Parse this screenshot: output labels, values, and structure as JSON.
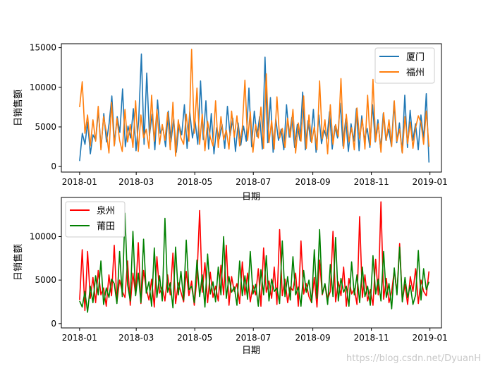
{
  "watermark": "https://blog.csdn.net/DyuanH",
  "chart_data": [
    {
      "type": "line",
      "xlabel": "日期",
      "ylabel": "日销售额",
      "x_start": "2018-01-01",
      "x_end": "2018-12-31",
      "xlim": [
        "2017-12-13",
        "2019-01-13"
      ],
      "ylim": [
        -700,
        15500
      ],
      "yticks": [
        0,
        5000,
        10000,
        15000
      ],
      "ytick_labels": [
        "0",
        "5000",
        "10000",
        "15000"
      ],
      "xtick_dates": [
        "2018-01-01",
        "2018-03-01",
        "2018-05-01",
        "2018-07-01",
        "2018-09-01",
        "2018-11-01",
        "2019-01-01"
      ],
      "xtick_labels": [
        "2018-01",
        "2018-03",
        "2018-05",
        "2018-07",
        "2018-09",
        "2018-11",
        "2019-01"
      ],
      "legend_position": "top-right",
      "series": [
        {
          "name": "厦门",
          "color": "#1f77b4",
          "values": [
            700,
            4200,
            2800,
            5600,
            1600,
            4000,
            3300,
            7100,
            2300,
            6700,
            3100,
            5500,
            8900,
            2800,
            6300,
            4300,
            9800,
            2500,
            5100,
            3600,
            7300,
            2000,
            5900,
            14200,
            2800,
            11800,
            3900,
            6600,
            2100,
            8400,
            4200,
            4900,
            2500,
            7000,
            3100,
            6000,
            1800,
            5300,
            4000,
            7800,
            2300,
            6900,
            3600,
            5700,
            2800,
            10800,
            3400,
            8300,
            2200,
            6700,
            1600,
            4900,
            3500,
            5300,
            2300,
            7600,
            3900,
            6100,
            1900,
            5500,
            2700,
            5100,
            3200,
            9900,
            2500,
            7000,
            3800,
            6300,
            2200,
            13800,
            3000,
            8700,
            1800,
            6000,
            3300,
            4700,
            2100,
            7800,
            3700,
            6200,
            2400,
            5300,
            3300,
            9400,
            2100,
            5800,
            3200,
            7200,
            1800,
            6500,
            2900,
            4600,
            3500,
            6900,
            2200,
            5100,
            3600,
            8000,
            2600,
            6000,
            1900,
            5400,
            3200,
            7300,
            2000,
            6400,
            3400,
            4800,
            2400,
            7800,
            3100,
            5900,
            2300,
            6700,
            3300,
            4700,
            2600,
            8200,
            3000,
            5500,
            1800,
            9000,
            2400,
            7100,
            3300,
            5400,
            2100,
            6500,
            3500,
            9200,
            500
          ]
        },
        {
          "name": "福州",
          "color": "#ff7f0e",
          "values": [
            7500,
            10700,
            4200,
            6500,
            2600,
            5900,
            3200,
            7600,
            2100,
            6300,
            4400,
            1700,
            8100,
            2600,
            6100,
            3300,
            1900,
            7200,
            3100,
            5300,
            2400,
            8300,
            1900,
            6500,
            3600,
            4700,
            2300,
            9000,
            3200,
            7200,
            2800,
            5300,
            3300,
            6800,
            2100,
            8100,
            1300,
            5900,
            3600,
            2800,
            6600,
            3200,
            14800,
            4200,
            9900,
            2800,
            6600,
            2000,
            5700,
            3700,
            2600,
            8300,
            2400,
            6300,
            3400,
            4600,
            2200,
            7000,
            3700,
            6400,
            2600,
            4900,
            10900,
            3300,
            6900,
            1800,
            5300,
            3600,
            7500,
            2300,
            11700,
            3000,
            5800,
            2200,
            8800,
            3600,
            4800,
            2400,
            6100,
            3700,
            7200,
            1700,
            5500,
            3200,
            8900,
            2300,
            6500,
            3000,
            5000,
            2100,
            10800,
            3500,
            5900,
            1600,
            7800,
            2800,
            5300,
            3800,
            11100,
            2300,
            6600,
            3100,
            4900,
            2100,
            7400,
            3500,
            6000,
            2200,
            9000,
            2700,
            11000,
            3200,
            5400,
            1800,
            6800,
            3300,
            5900,
            2500,
            8300,
            3200,
            4700,
            1700,
            6300,
            2900,
            5600,
            2300,
            4900,
            6400,
            5500,
            2800,
            7000,
            2500
          ]
        }
      ]
    },
    {
      "type": "line",
      "xlabel": "日期",
      "ylabel": "日销售额",
      "x_start": "2018-01-01",
      "x_end": "2018-12-31",
      "xlim": [
        "2017-12-13",
        "2019-01-13"
      ],
      "ylim": [
        -500,
        14500
      ],
      "yticks": [
        0,
        5000,
        10000
      ],
      "ytick_labels": [
        "0",
        "5000",
        "10000"
      ],
      "xtick_dates": [
        "2018-01-01",
        "2018-03-01",
        "2018-05-01",
        "2018-07-01",
        "2018-09-01",
        "2018-11-01",
        "2019-01-01"
      ],
      "xtick_labels": [
        "2018-01",
        "2018-03",
        "2018-05",
        "2018-07",
        "2018-09",
        "2018-11",
        "2019-01"
      ],
      "legend_position": "top-left",
      "series": [
        {
          "name": "泉州",
          "color": "#ff0000",
          "values": [
            2700,
            8500,
            1500,
            8300,
            2900,
            5300,
            2400,
            6100,
            3300,
            4100,
            2000,
            5600,
            3200,
            9000,
            2500,
            5000,
            3700,
            3000,
            7200,
            2100,
            5800,
            3300,
            9300,
            2300,
            6100,
            4000,
            2700,
            5100,
            1900,
            7700,
            3500,
            4200,
            2600,
            5600,
            3300,
            8100,
            2300,
            4700,
            3600,
            2500,
            6000,
            3200,
            4900,
            2100,
            5200,
            13000,
            3600,
            7000,
            2400,
            5900,
            3000,
            4300,
            2600,
            6700,
            3300,
            9000,
            2100,
            5400,
            3700,
            4600,
            2300,
            7100,
            3300,
            5800,
            2500,
            4400,
            3300,
            6300,
            2000,
            8700,
            3600,
            4900,
            2900,
            6500,
            2200,
            10800,
            3200,
            5100,
            2400,
            4200,
            3800,
            5800,
            2000,
            9500,
            3400,
            4600,
            3100,
            2400,
            5300,
            1900,
            7300,
            3300,
            4500,
            2800,
            3700,
            10600,
            2500,
            4800,
            3200,
            6500,
            2000,
            5200,
            3400,
            4000,
            2200,
            12300,
            3000,
            5600,
            2600,
            3900,
            2100,
            7400,
            3300,
            14000,
            2800,
            5200,
            2400,
            3700,
            6100,
            3500,
            9200,
            2600,
            4500,
            2200,
            5400,
            3700,
            6300,
            2300,
            5000,
            3700,
            3200,
            6000
          ]
        },
        {
          "name": "莆田",
          "color": "#008000",
          "values": [
            2600,
            1900,
            3700,
            1300,
            4300,
            2400,
            5500,
            3300,
            7200,
            2200,
            4100,
            3000,
            5100,
            4600,
            2300,
            8300,
            3100,
            12700,
            4500,
            2600,
            10600,
            3200,
            5800,
            2400,
            9700,
            3500,
            4800,
            2000,
            8700,
            3000,
            5500,
            2600,
            12100,
            3600,
            4700,
            1800,
            8800,
            3300,
            6000,
            2700,
            9600,
            3900,
            4300,
            2400,
            7300,
            3100,
            5600,
            1900,
            8000,
            3400,
            4800,
            2500,
            6500,
            3300,
            10000,
            2900,
            5400,
            3600,
            4200,
            2100,
            7200,
            3200,
            5500,
            2800,
            8300,
            3400,
            4500,
            2000,
            6200,
            3300,
            7800,
            2600,
            5100,
            3700,
            4100,
            2300,
            9500,
            3100,
            5400,
            2700,
            7700,
            3300,
            4200,
            2000,
            6100,
            3600,
            5000,
            2400,
            8500,
            2900,
            10800,
            3400,
            4600,
            2200,
            6800,
            3100,
            9900,
            2600,
            5200,
            3600,
            4300,
            2000,
            7100,
            3300,
            5600,
            2400,
            6500,
            3100,
            4300,
            2100,
            7800,
            3400,
            5100,
            2600,
            8300,
            3000,
            4600,
            1700,
            6400,
            3300,
            8800,
            2500,
            5300,
            3000,
            4400,
            2200,
            3300,
            8400,
            2700,
            6300,
            3900,
            4800
          ]
        }
      ]
    }
  ]
}
